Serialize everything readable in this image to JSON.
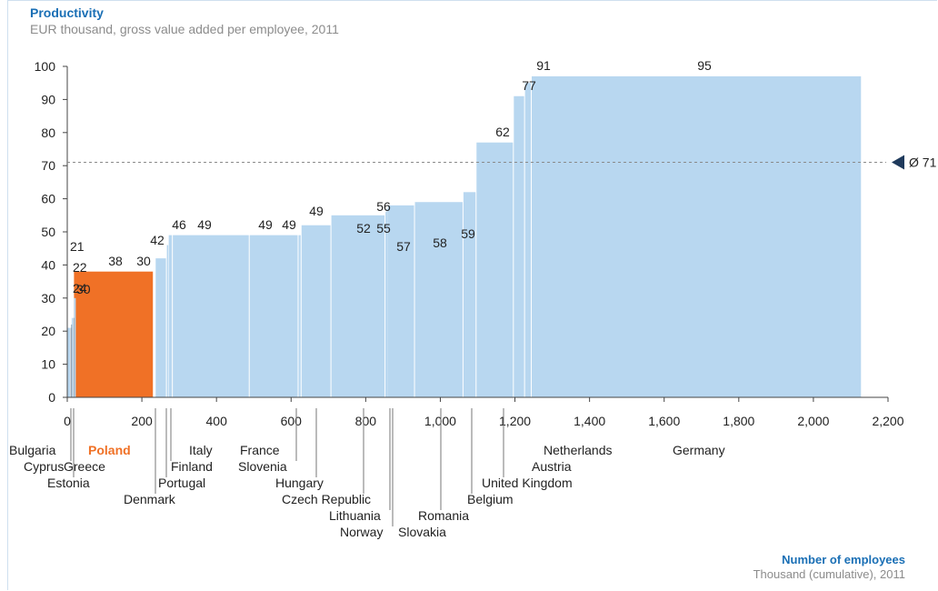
{
  "chart_data": {
    "type": "bar",
    "variant": "variable-width (Marimekko) bar chart, bar width = employees",
    "title": "Productivity",
    "subtitle": "EUR thousand, gross value added per employee, 2011",
    "xlabel": "Number of employees",
    "xsublabel": "Thousand (cumulative), 2011",
    "xlim": [
      0,
      2200
    ],
    "ylim": [
      0,
      100
    ],
    "xticks": [
      "0",
      "200",
      "400",
      "600",
      "800",
      "1,000",
      "1,200",
      "1,400",
      "1,600",
      "1,800",
      "2,000",
      "2,200"
    ],
    "yticks": [
      "0",
      "10",
      "20",
      "30",
      "40",
      "50",
      "60",
      "70",
      "80",
      "90",
      "100"
    ],
    "average": {
      "value": 71,
      "label": "Ø 71"
    },
    "colors": {
      "bar": "#b8d7f0",
      "highlight": "#f07126",
      "highlight_text": "#f07126",
      "axis": "#444444",
      "average_marker": "#1f3a5c"
    },
    "countries": [
      {
        "name": "Bulgaria",
        "value": 21,
        "label": "21",
        "start": 0,
        "end": 10
      },
      {
        "name": "Cyprus",
        "value": 22,
        "label": "22",
        "start": 10,
        "end": 12
      },
      {
        "name": "Estonia",
        "value": 24,
        "label": "24",
        "start": 12,
        "end": 18
      },
      {
        "name": "Poland",
        "value": 38,
        "label": "38",
        "start": 18,
        "end": 232,
        "highlight": true
      },
      {
        "name": "Greece",
        "value": 30,
        "label": "30",
        "start": 18,
        "end": 23
      },
      {
        "name": "Denmark",
        "value": 42,
        "label": "42",
        "start": 237,
        "end": 267
      },
      {
        "name": "Portugal",
        "value": 46,
        "label": "46",
        "start": 267,
        "end": 272
      },
      {
        "name": "Finland",
        "value": 49,
        "label": "49",
        "start": 272,
        "end": 283
      },
      {
        "name": "Italy",
        "value": 49,
        "label": "49",
        "start": 283,
        "end": 489
      },
      {
        "name": "France",
        "value": 49,
        "label": "49",
        "start": 489,
        "end": 620
      },
      {
        "name": "Slovenia",
        "value": 49,
        "label": "49",
        "start": 620,
        "end": 628
      },
      {
        "name": "Hungary",
        "value": 52,
        "label": "52",
        "start": 628,
        "end": 708
      },
      {
        "name": "Czech Republic",
        "value": 55,
        "label": "55",
        "start": 708,
        "end": 853
      },
      {
        "name": "Lithuania",
        "value": 56,
        "label": "56",
        "start": 853,
        "end": 856
      },
      {
        "name": "Norway",
        "value": 57,
        "label": "57",
        "start": 856,
        "end": 860
      },
      {
        "name": "Slovakia",
        "value": 58,
        "label": "58",
        "start": 860,
        "end": 932
      },
      {
        "name": "Romania",
        "value": 59,
        "label": "59",
        "start": 932,
        "end": 1062
      },
      {
        "name": "Belgium",
        "value": 62,
        "label": "62",
        "start": 1062,
        "end": 1097
      },
      {
        "name": "United Kingdom",
        "value": 77,
        "label": "77",
        "start": 1097,
        "end": 1197
      },
      {
        "name": "Austria",
        "value": 91,
        "label": "91",
        "start": 1197,
        "end": 1227
      },
      {
        "name": "Netherlands",
        "value": 95,
        "label": "95",
        "start": 1227,
        "end": 1245
      },
      {
        "name": "Germany",
        "value": 97,
        "label": "97",
        "start": 1245,
        "end": 2130
      }
    ]
  }
}
